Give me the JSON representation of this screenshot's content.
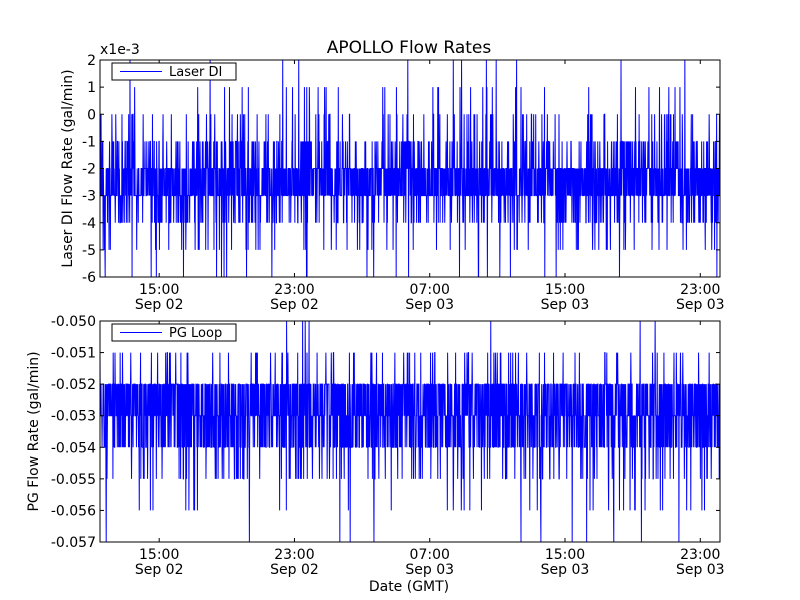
{
  "figure": {
    "title": "APOLLO Flow Rates",
    "xlabel": "Date (GMT)"
  },
  "chart_data": [
    {
      "type": "line",
      "ylabel": "Laser DI Flow Rate (gal/min)",
      "offset_label": "x1e-3",
      "ylim": [
        -6,
        2
      ],
      "yticks": [
        {
          "value": 2,
          "label": "2"
        },
        {
          "value": 1,
          "label": "1"
        },
        {
          "value": 0,
          "label": "0"
        },
        {
          "value": -1,
          "label": "-1"
        },
        {
          "value": -2,
          "label": "-2"
        },
        {
          "value": -3,
          "label": "-3"
        },
        {
          "value": -4,
          "label": "-4"
        },
        {
          "value": -5,
          "label": "-5"
        },
        {
          "value": -6,
          "label": "-6"
        }
      ],
      "xlim": [
        "2012-09-02 11:30",
        "2012-09-04 00:10"
      ],
      "xticks": [
        {
          "value": "2012-09-02 15:00",
          "label_time": "15:00",
          "label_date": "Sep 02"
        },
        {
          "value": "2012-09-02 23:00",
          "label_time": "23:00",
          "label_date": "Sep 02"
        },
        {
          "value": "2012-09-03 07:00",
          "label_time": "07:00",
          "label_date": "Sep 03"
        },
        {
          "value": "2012-09-03 15:00",
          "label_time": "15:00",
          "label_date": "Sep 03"
        },
        {
          "value": "2012-09-03 23:00",
          "label_time": "23:00",
          "label_date": "Sep 03"
        }
      ],
      "grid": false,
      "legend_position": "top-left",
      "series": [
        {
          "name": "Laser DI",
          "color": "#0000ff",
          "baseline": -2.5,
          "core_band": [
            -3,
            -2
          ],
          "frequent_band": [
            -4,
            -1
          ],
          "occasional_band": [
            -5,
            1
          ],
          "max": 2,
          "min": -6
        }
      ]
    },
    {
      "type": "line",
      "ylabel": "PG Flow Rate (gal/min)",
      "offset_label": "",
      "ylim": [
        -0.057,
        -0.05
      ],
      "yticks": [
        {
          "value": -0.05,
          "label": "-0.050"
        },
        {
          "value": -0.051,
          "label": "-0.051"
        },
        {
          "value": -0.052,
          "label": "-0.052"
        },
        {
          "value": -0.053,
          "label": "-0.053"
        },
        {
          "value": -0.054,
          "label": "-0.054"
        },
        {
          "value": -0.055,
          "label": "-0.055"
        },
        {
          "value": -0.056,
          "label": "-0.056"
        },
        {
          "value": -0.057,
          "label": "-0.057"
        }
      ],
      "xlim": [
        "2012-09-02 11:30",
        "2012-09-04 00:10"
      ],
      "xticks": [
        {
          "value": "2012-09-02 15:00",
          "label_time": "15:00",
          "label_date": "Sep 02"
        },
        {
          "value": "2012-09-02 23:00",
          "label_time": "23:00",
          "label_date": "Sep 02"
        },
        {
          "value": "2012-09-03 07:00",
          "label_time": "07:00",
          "label_date": "Sep 03"
        },
        {
          "value": "2012-09-03 15:00",
          "label_time": "15:00",
          "label_date": "Sep 03"
        },
        {
          "value": "2012-09-03 23:00",
          "label_time": "23:00",
          "label_date": "Sep 03"
        }
      ],
      "grid": false,
      "legend_position": "top-left",
      "series": [
        {
          "name": "PG Loop",
          "color": "#0000ff",
          "baseline": -0.0532,
          "core_band": [
            -0.054,
            -0.052
          ],
          "occasional_band": [
            -0.055,
            -0.051
          ],
          "max": -0.05,
          "min": -0.057
        }
      ]
    }
  ]
}
